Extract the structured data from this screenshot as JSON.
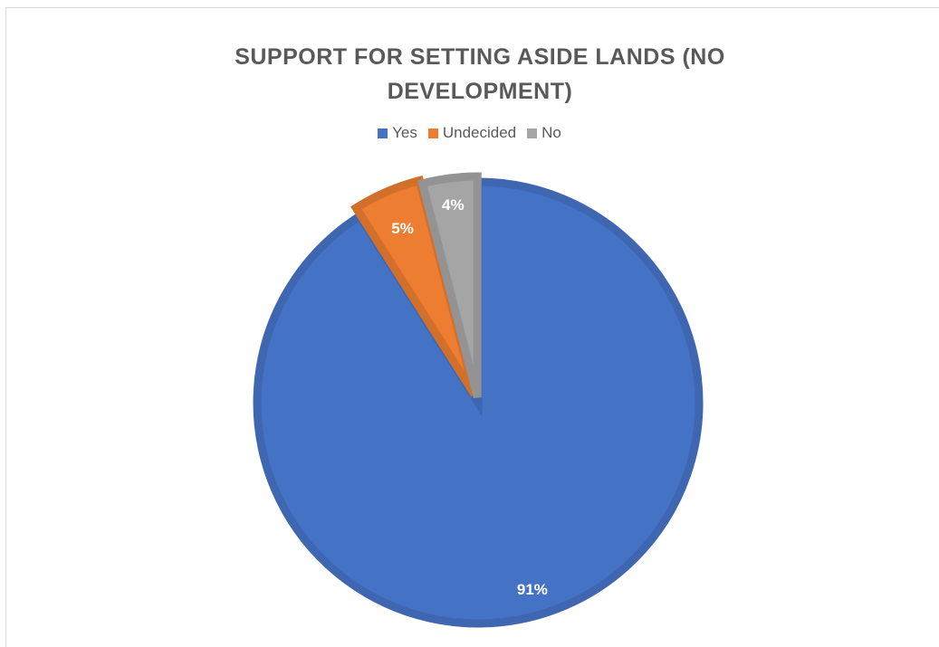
{
  "chart_data": {
    "type": "pie",
    "title": "SUPPORT FOR SETTING ASIDE LANDS (NO DEVELOPMENT)",
    "legend_position": "top",
    "categories": [
      "Yes",
      "Undecided",
      "No"
    ],
    "values": [
      91,
      5,
      4
    ],
    "labels": [
      "91%",
      "5%",
      "4%"
    ],
    "colors": [
      "#4472C4",
      "#ED7D31",
      "#A5A5A5"
    ],
    "border_colors": [
      "#3F67B1",
      "#D26F2B",
      "#939393"
    ]
  }
}
